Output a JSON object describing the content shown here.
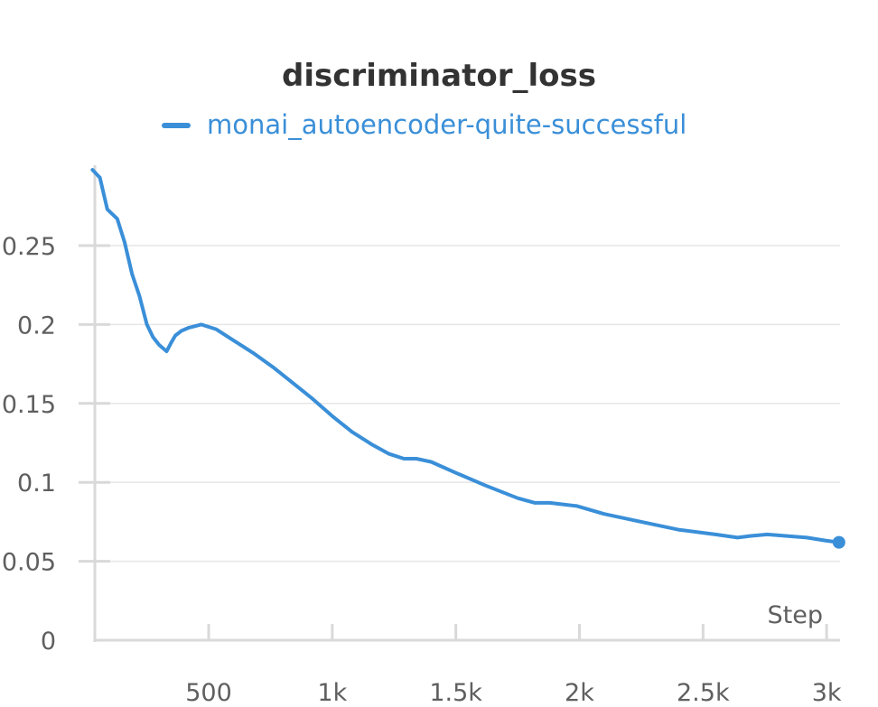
{
  "chart_data": {
    "type": "line",
    "title": "discriminator_loss",
    "xlabel": "Step",
    "ylabel": "",
    "xlim": [
      30,
      3050
    ],
    "ylim": [
      0,
      0.3
    ],
    "x_ticks": [
      500,
      1000,
      1500,
      2000,
      2500,
      3000
    ],
    "x_tick_labels": [
      "500",
      "1k",
      "1.5k",
      "2k",
      "2.5k",
      "3k"
    ],
    "y_ticks": [
      0,
      0.05,
      0.1,
      0.15,
      0.2,
      0.25
    ],
    "y_tick_labels": [
      "0",
      "0.05",
      "0.1",
      "0.15",
      "0.2",
      "0.25"
    ],
    "grid": true,
    "legend": "top-center",
    "colors": {
      "series": "#3a8fd8",
      "grid": "#e6e6e6",
      "axis": "#d9d9d9",
      "title": "#333333",
      "tick": "#5f5f5f"
    },
    "series": [
      {
        "name": "monai_autoencoder-quite-successful",
        "x": [
          30,
          60,
          90,
          130,
          160,
          190,
          220,
          250,
          275,
          300,
          330,
          350,
          365,
          390,
          420,
          470,
          530,
          600,
          680,
          760,
          840,
          920,
          1000,
          1080,
          1160,
          1230,
          1290,
          1340,
          1400,
          1500,
          1620,
          1750,
          1820,
          1880,
          1990,
          2100,
          2250,
          2400,
          2550,
          2640,
          2690,
          2760,
          2840,
          2920,
          3000,
          3050
        ],
        "y": [
          0.298,
          0.293,
          0.273,
          0.267,
          0.252,
          0.232,
          0.218,
          0.2,
          0.192,
          0.187,
          0.183,
          0.189,
          0.193,
          0.196,
          0.198,
          0.2,
          0.197,
          0.19,
          0.182,
          0.173,
          0.163,
          0.153,
          0.142,
          0.132,
          0.124,
          0.118,
          0.115,
          0.115,
          0.113,
          0.106,
          0.098,
          0.09,
          0.087,
          0.087,
          0.085,
          0.08,
          0.075,
          0.07,
          0.067,
          0.065,
          0.066,
          0.067,
          0.066,
          0.065,
          0.063,
          0.062
        ]
      }
    ]
  }
}
